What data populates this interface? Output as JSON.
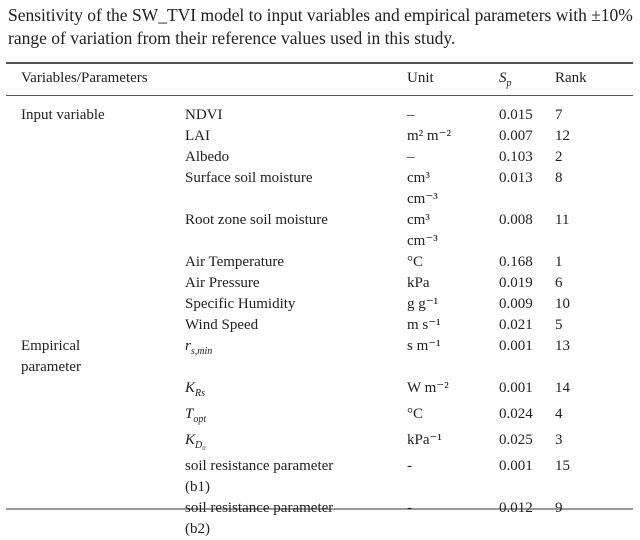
{
  "caption": "Sensitivity of the SW_TVI model to input variables and empirical parameters with ±10% range of variation from their reference values used in this study.",
  "headers": {
    "col1": "Variables/Parameters",
    "unit": "Unit",
    "sp_main": "S",
    "sp_sub": "p",
    "rank": "Rank"
  },
  "rows": [
    {
      "group": "Input variable",
      "name": "NDVI",
      "unit": "–",
      "sp": "0.015",
      "rank": "7"
    },
    {
      "group": "",
      "name": "LAI",
      "unit": "m² m⁻²",
      "sp": "0.007",
      "rank": "12"
    },
    {
      "group": "",
      "name": "Albedo",
      "unit": "–",
      "sp": "0.103",
      "rank": "2"
    },
    {
      "group": "",
      "name": "Surface soil moisture",
      "unit": "cm³\ncm⁻³",
      "sp": "0.013",
      "rank": "8"
    },
    {
      "group": "",
      "name": "Root zone soil moisture",
      "unit": "cm³\ncm⁻³",
      "sp": "0.008",
      "rank": "11"
    },
    {
      "group": "",
      "name": "Air Temperature",
      "unit": "°C",
      "sp": "0.168",
      "rank": "1"
    },
    {
      "group": "",
      "name": "Air Pressure",
      "unit": "kPa",
      "sp": "0.019",
      "rank": "6"
    },
    {
      "group": "",
      "name": "Specific Humidity",
      "unit": "g g⁻¹",
      "sp": "0.009",
      "rank": "10"
    },
    {
      "group": "",
      "name": "Wind Speed",
      "unit": "m s⁻¹",
      "sp": "0.021",
      "rank": "5"
    },
    {
      "group": "Empirical\n   parameter",
      "name_main": "r",
      "name_sub": "s,min",
      "unit": "s m⁻¹",
      "sp": "0.001",
      "rank": "13"
    },
    {
      "group": "",
      "name_main": "K",
      "name_sub": "Rs",
      "unit": "W m⁻²",
      "sp": "0.001",
      "rank": "14"
    },
    {
      "group": "",
      "name_main": "T",
      "name_sub": "opt",
      "unit": "°C",
      "sp": "0.024",
      "rank": "4"
    },
    {
      "group": "",
      "name_main": "K",
      "name_sub": "D₀",
      "unit": "kPa⁻¹",
      "sp": "0.025",
      "rank": "3"
    },
    {
      "group": "",
      "name": "soil resistance parameter\n(b1)",
      "unit": "-",
      "sp": "0.001",
      "rank": "15"
    },
    {
      "group": "",
      "name": "soil resistance parameter\n(b2)",
      "unit": "-",
      "sp": "0.012",
      "rank": "9"
    }
  ]
}
